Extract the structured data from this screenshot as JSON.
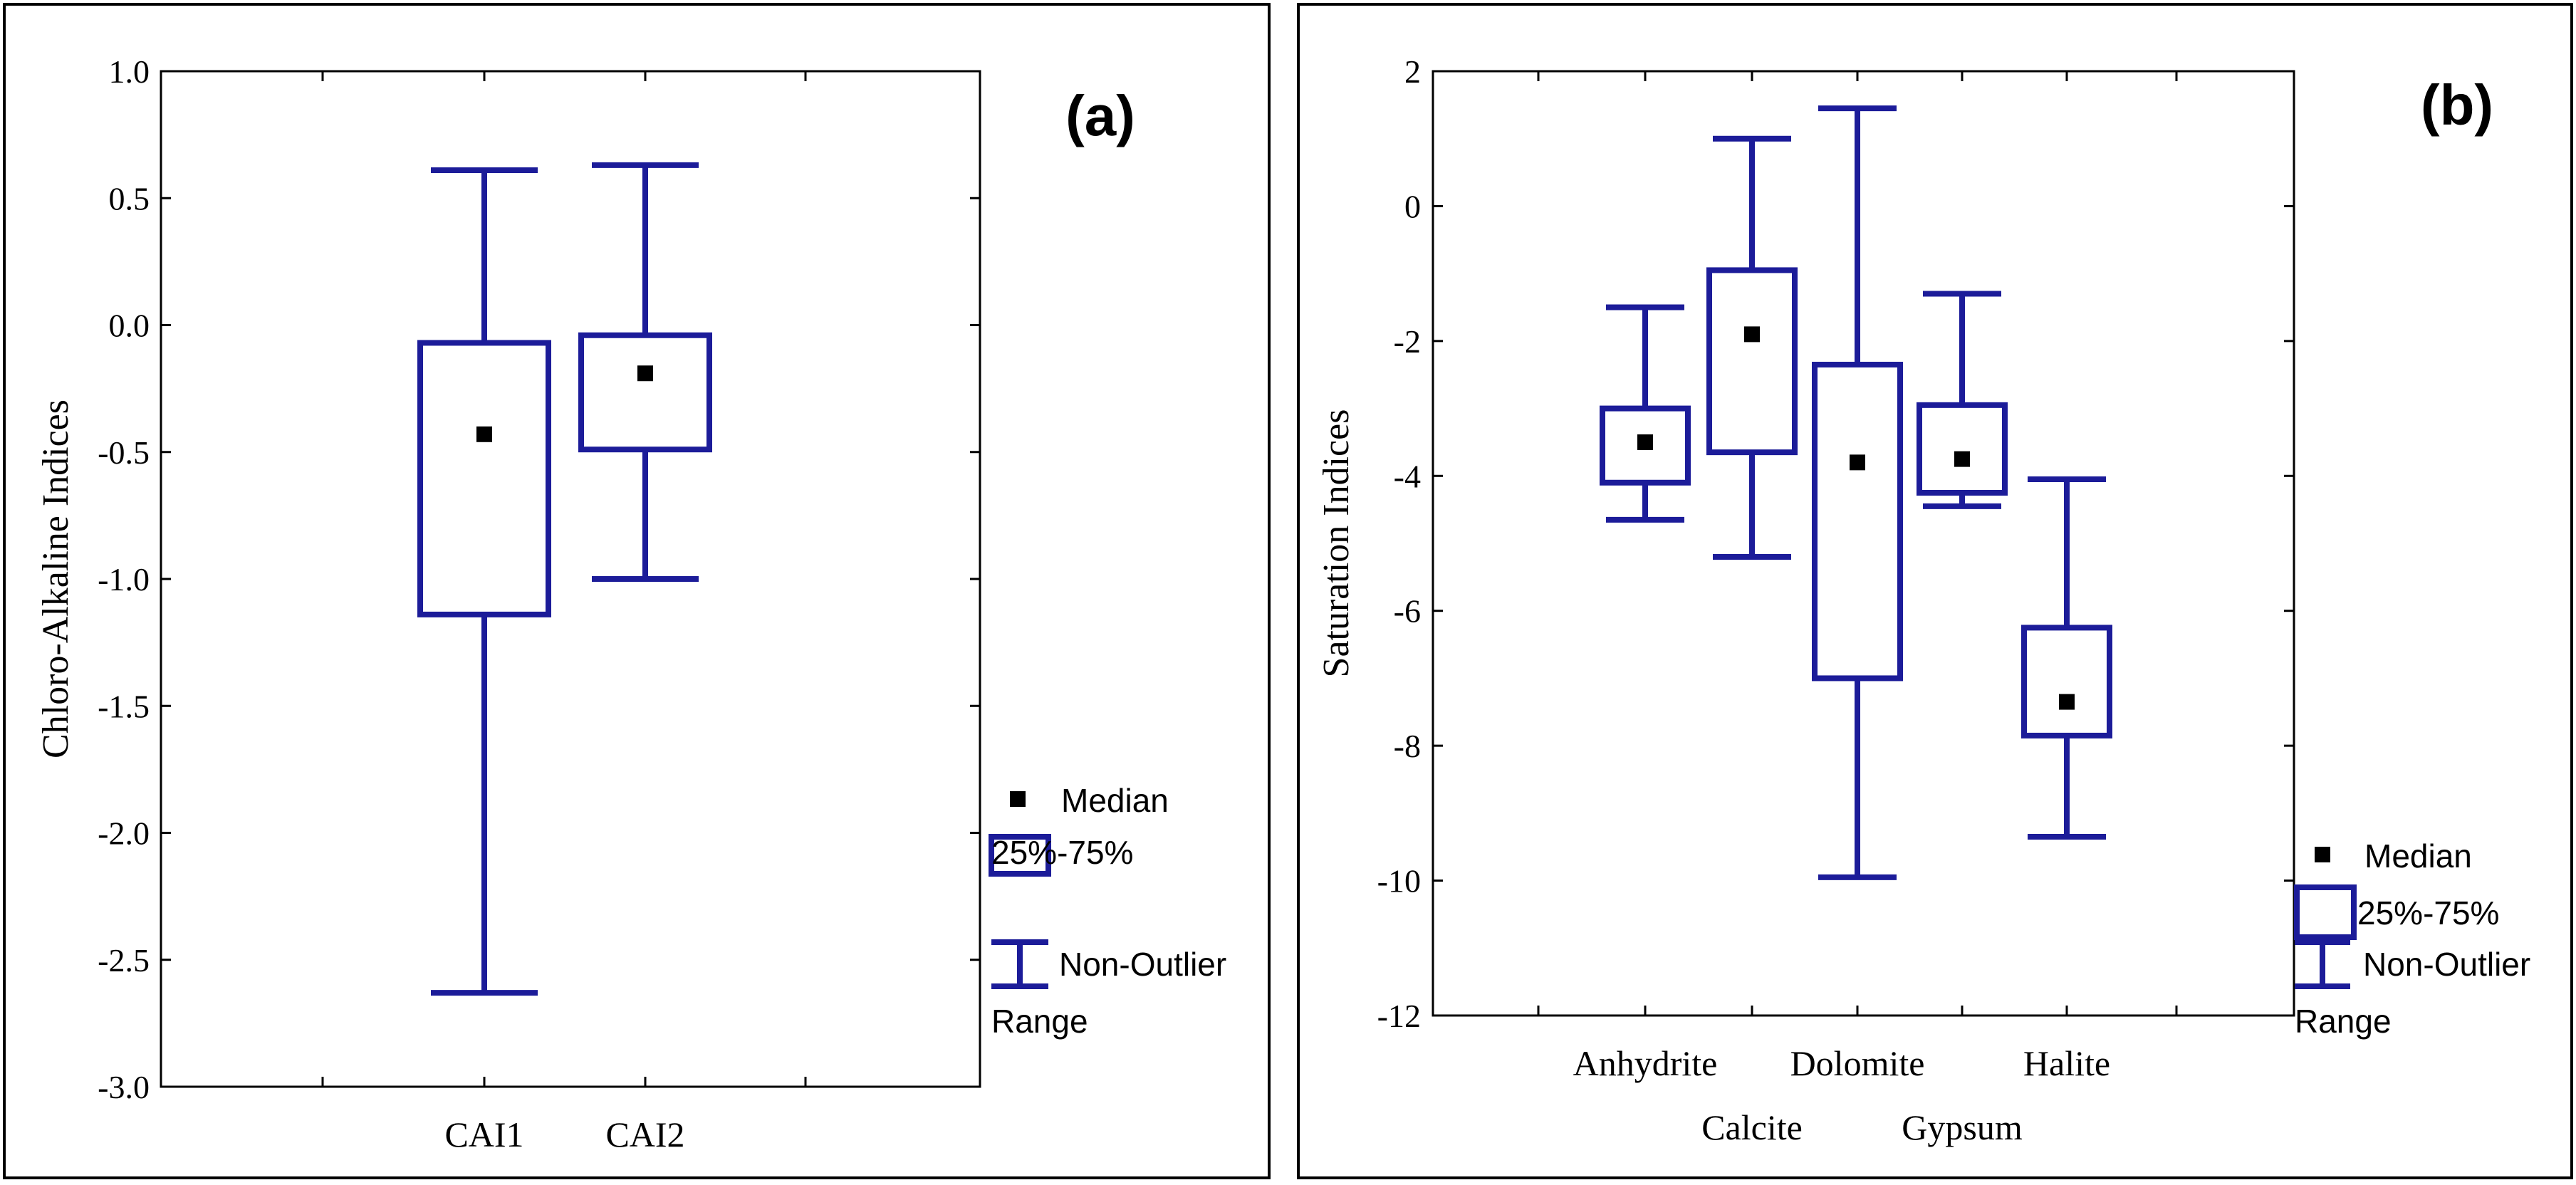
{
  "colors": {
    "box": "#1c1c99",
    "median": "#000000"
  },
  "legend": {
    "median": "Median",
    "box": "25%-75%",
    "range_line1": "Non-Outlier",
    "range_line2": "Range"
  },
  "chart_data": [
    {
      "type": "box",
      "tag": "(a)",
      "xlabel": "",
      "ylabel": "Chloro-Alkaline Indices",
      "ylim": [
        -3.0,
        1.0
      ],
      "yticks": [
        -3.0,
        -2.5,
        -2.0,
        -1.5,
        -1.0,
        -0.5,
        0.0,
        0.5,
        1.0
      ],
      "ytick_labels": [
        "-3.0",
        "-2.5",
        "-2.0",
        "-1.5",
        "-1.0",
        "-0.5",
        "0.0",
        "0.5",
        "1.0"
      ],
      "categories": [
        "CAI1",
        "CAI2"
      ],
      "boxes": [
        {
          "name": "CAI1",
          "min": -2.63,
          "q1": -1.14,
          "median": -0.43,
          "q3": -0.07,
          "max": 0.61
        },
        {
          "name": "CAI2",
          "min": -1.0,
          "q1": -0.49,
          "median": -0.19,
          "q3": -0.04,
          "max": 0.63
        }
      ],
      "legend_position": "right"
    },
    {
      "type": "box",
      "tag": "(b)",
      "xlabel": "",
      "ylabel": "Saturation Indices",
      "ylim": [
        -12,
        2
      ],
      "yticks": [
        -12,
        -10,
        -8,
        -6,
        -4,
        -2,
        0,
        2
      ],
      "ytick_labels": [
        "-12",
        "-10",
        "-8",
        "-6",
        "-4",
        "-2",
        "0",
        "2"
      ],
      "categories": [
        "Anhydrite",
        "Calcite",
        "Dolomite",
        "Gypsum",
        "Halite"
      ],
      "boxes": [
        {
          "name": "Anhydrite",
          "min": -4.65,
          "q1": -4.1,
          "median": -3.5,
          "q3": -3.0,
          "max": -1.5
        },
        {
          "name": "Calcite",
          "min": -5.2,
          "q1": -3.65,
          "median": -1.9,
          "q3": -0.95,
          "max": 1.0
        },
        {
          "name": "Dolomite",
          "min": -9.95,
          "q1": -7.0,
          "median": -3.8,
          "q3": -2.35,
          "max": 1.45
        },
        {
          "name": "Gypsum",
          "min": -4.45,
          "q1": -4.25,
          "median": -3.75,
          "q3": -2.95,
          "max": -1.3
        },
        {
          "name": "Halite",
          "min": -9.35,
          "q1": -7.85,
          "median": -7.35,
          "q3": -6.25,
          "max": -4.05
        }
      ],
      "legend_position": "right"
    }
  ]
}
